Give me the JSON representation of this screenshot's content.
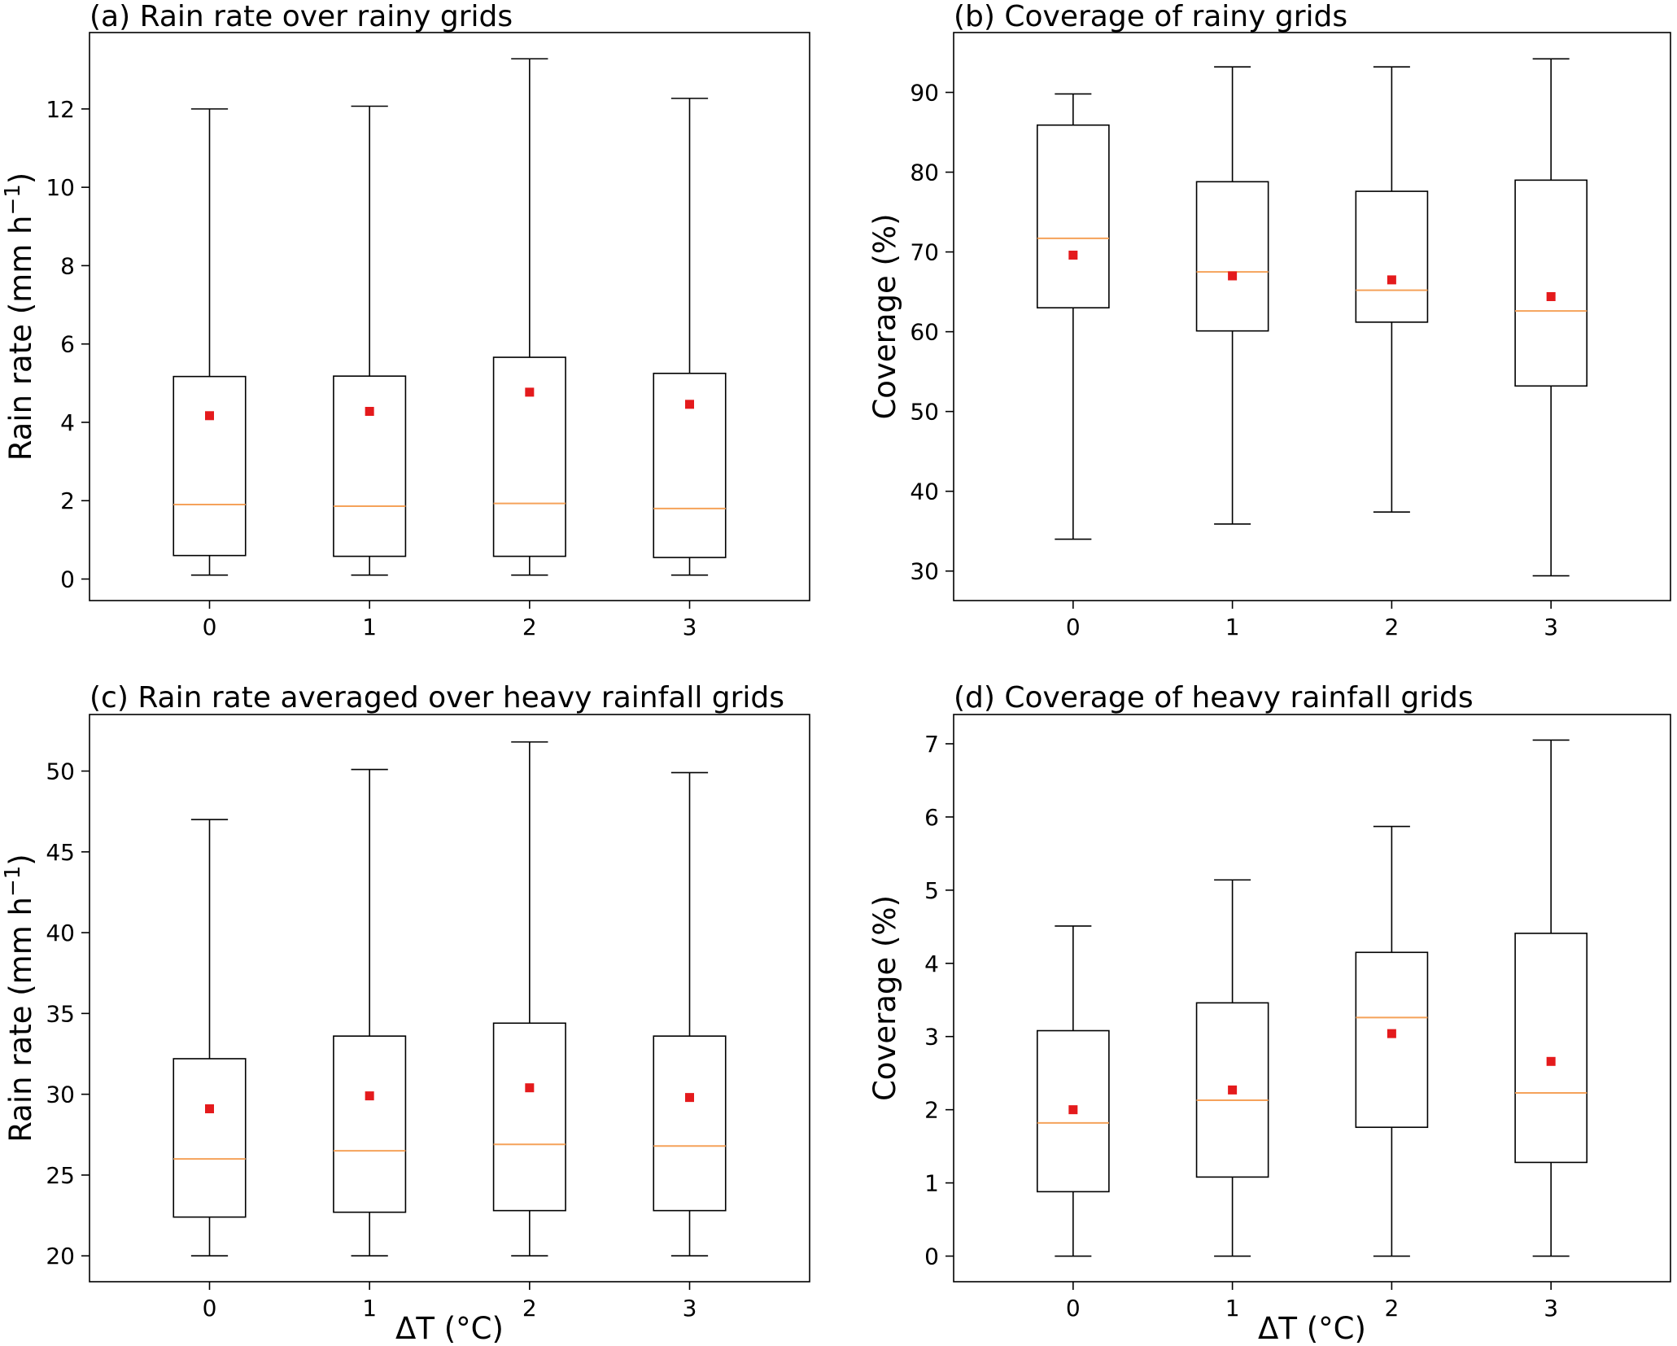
{
  "chart_data": [
    {
      "type": "box",
      "title": "(a) Rain rate over rainy grids",
      "xlabel": "",
      "ylabel": "Rain rate (mm h",
      "ylabel_sup": "−1",
      "ylabel_end": ")",
      "categories": [
        "0",
        "1",
        "2",
        "3"
      ],
      "ylim": [
        -0.55,
        13.95
      ],
      "yticks": [
        0,
        2,
        4,
        6,
        8,
        10,
        12
      ],
      "ytick_labels": [
        "0",
        "2",
        "4",
        "6",
        "8",
        "10",
        "12"
      ],
      "boxes": [
        {
          "whisker_low": 0.1,
          "q1": 0.6,
          "median": 1.9,
          "q3": 5.17,
          "whisker_high": 12.0,
          "mean": 4.17
        },
        {
          "whisker_low": 0.1,
          "q1": 0.58,
          "median": 1.86,
          "q3": 5.18,
          "whisker_high": 12.07,
          "mean": 4.28
        },
        {
          "whisker_low": 0.1,
          "q1": 0.58,
          "median": 1.93,
          "q3": 5.66,
          "whisker_high": 13.28,
          "mean": 4.77
        },
        {
          "whisker_low": 0.1,
          "q1": 0.55,
          "median": 1.8,
          "q3": 5.25,
          "whisker_high": 12.27,
          "mean": 4.46
        }
      ]
    },
    {
      "type": "box",
      "title": "(b) Coverage of rainy grids",
      "xlabel": "",
      "ylabel": "Coverage (%)",
      "ylabel_sup": "",
      "ylabel_end": "",
      "categories": [
        "0",
        "1",
        "2",
        "3"
      ],
      "ylim": [
        26.3,
        97.5
      ],
      "yticks": [
        30,
        40,
        50,
        60,
        70,
        80,
        90
      ],
      "ytick_labels": [
        "30",
        "40",
        "50",
        "60",
        "70",
        "80",
        "90"
      ],
      "boxes": [
        {
          "whisker_low": 34.0,
          "q1": 63.0,
          "median": 71.7,
          "q3": 85.9,
          "whisker_high": 89.8,
          "mean": 69.6
        },
        {
          "whisker_low": 35.9,
          "q1": 60.1,
          "median": 67.5,
          "q3": 78.8,
          "whisker_high": 93.2,
          "mean": 67.0
        },
        {
          "whisker_low": 37.4,
          "q1": 61.2,
          "median": 65.2,
          "q3": 77.6,
          "whisker_high": 93.2,
          "mean": 66.5
        },
        {
          "whisker_low": 29.4,
          "q1": 53.2,
          "median": 62.6,
          "q3": 79.0,
          "whisker_high": 94.2,
          "mean": 64.4
        }
      ]
    },
    {
      "type": "box",
      "title": "(c) Rain rate averaged over heavy rainfall grids",
      "xlabel": "ΔT (°C)",
      "ylabel": "Rain rate (mm h",
      "ylabel_sup": "−1",
      "ylabel_end": ")",
      "categories": [
        "0",
        "1",
        "2",
        "3"
      ],
      "ylim": [
        18.4,
        53.5
      ],
      "yticks": [
        20,
        25,
        30,
        35,
        40,
        45,
        50
      ],
      "ytick_labels": [
        "20",
        "25",
        "30",
        "35",
        "40",
        "45",
        "50"
      ],
      "boxes": [
        {
          "whisker_low": 20.0,
          "q1": 22.4,
          "median": 26.0,
          "q3": 32.2,
          "whisker_high": 47.0,
          "mean": 29.1
        },
        {
          "whisker_low": 20.0,
          "q1": 22.7,
          "median": 26.5,
          "q3": 33.6,
          "whisker_high": 50.1,
          "mean": 29.9
        },
        {
          "whisker_low": 20.0,
          "q1": 22.8,
          "median": 26.9,
          "q3": 34.4,
          "whisker_high": 51.8,
          "mean": 30.4
        },
        {
          "whisker_low": 20.0,
          "q1": 22.8,
          "median": 26.8,
          "q3": 33.6,
          "whisker_high": 49.9,
          "mean": 29.8
        }
      ]
    },
    {
      "type": "box",
      "title": "(d) Coverage of heavy rainfall grids",
      "xlabel": "ΔT (°C)",
      "ylabel": "Coverage (%)",
      "ylabel_sup": "",
      "ylabel_end": "",
      "categories": [
        "0",
        "1",
        "2",
        "3"
      ],
      "ylim": [
        -0.35,
        7.4
      ],
      "yticks": [
        0,
        1,
        2,
        3,
        4,
        5,
        6,
        7
      ],
      "ytick_labels": [
        "0",
        "1",
        "2",
        "3",
        "4",
        "5",
        "6",
        "7"
      ],
      "boxes": [
        {
          "whisker_low": 0.0,
          "q1": 0.88,
          "median": 1.82,
          "q3": 3.08,
          "whisker_high": 4.51,
          "mean": 2.0
        },
        {
          "whisker_low": 0.0,
          "q1": 1.08,
          "median": 2.13,
          "q3": 3.46,
          "whisker_high": 5.14,
          "mean": 2.27
        },
        {
          "whisker_low": 0.0,
          "q1": 1.76,
          "median": 3.26,
          "q3": 4.15,
          "whisker_high": 5.87,
          "mean": 3.04
        },
        {
          "whisker_low": 0.0,
          "q1": 1.28,
          "median": 2.23,
          "q3": 4.41,
          "whisker_high": 7.05,
          "mean": 2.66
        }
      ]
    }
  ],
  "style": {
    "box_color": "#000000",
    "median_color": "#f5a25a",
    "mean_color": "#e41a1c"
  }
}
